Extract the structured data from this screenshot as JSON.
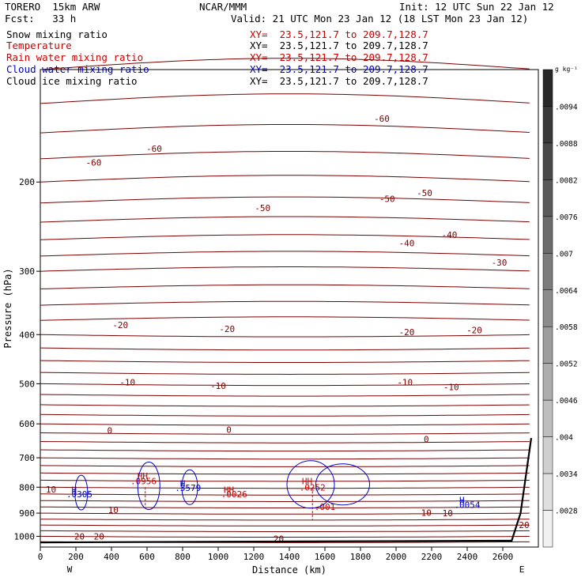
{
  "header": {
    "model": "TORERO  15km ARW",
    "center": "NCAR/MMM",
    "init": "Init: 12 UTC Sun 22 Jan 12",
    "fcst": "Fcst:   33 h",
    "valid": "Valid: 21 UTC Mon 23 Jan 12 (18 LST Mon 23 Jan 12)"
  },
  "legend": [
    {
      "label": "Snow mixing ratio",
      "xy": "",
      "color": "#000000"
    },
    {
      "label": "Temperature",
      "xy": "XY=  23.5,121.7 to 209.7,128.7",
      "color": "#cc0000"
    },
    {
      "label": "Rain water mixing ratio",
      "xy": "XY=  23.5,121.7 to 209.7,128.7",
      "color": "#cc0000"
    },
    {
      "label": "Cloud water mixing ratio",
      "xy": "XY=  23.5,121.7 to 209.7,128.7",
      "color": "#0000cc"
    },
    {
      "label": "Cloud ice mixing ratio",
      "xy": "XY=  23.5,121.7 to 209.7,128.7",
      "color": "#000000"
    }
  ],
  "xy_extra": "XY=  23.5,121.7 to 209.7,128.7",
  "chart_data": {
    "type": "contour-cross-section",
    "xlabel": "Distance (km)",
    "ylabel": "Pressure (hPa)",
    "xlim": [
      0,
      2800
    ],
    "ylim": [
      1050,
      120
    ],
    "x_ticks": [
      0,
      200,
      400,
      600,
      800,
      1000,
      1200,
      1400,
      1600,
      1800,
      2000,
      2200,
      2400,
      2600
    ],
    "x_tick_labels": [
      "0",
      "200",
      "400",
      "600",
      "800",
      "1000",
      "1200",
      "1400",
      "1600",
      "1800",
      "2000",
      "2200",
      "2400",
      "2600"
    ],
    "y_ticks": [
      200,
      300,
      400,
      500,
      600,
      700,
      800,
      900,
      1000
    ],
    "y_tick_labels": [
      "200",
      "300",
      "400",
      "500",
      "600",
      "700",
      "800",
      "900",
      "1000"
    ],
    "x_end_labels": {
      "left": "W",
      "right": "E"
    },
    "temperature_contours": [
      {
        "value": -60,
        "x": [
          0,
          400,
          1000,
          1600,
          2200,
          2800
        ],
        "y": [
          180,
          172,
          168,
          168,
          172,
          178
        ],
        "label_at": [
          [
            260,
            180
          ],
          [
            640,
            173
          ],
          [
            2040,
            136
          ]
        ]
      },
      {
        "value": -50,
        "x": [
          0,
          500,
          1000,
          1500,
          2000,
          2500,
          2800
        ],
        "y": [
          238,
          232,
          228,
          228,
          232,
          236,
          240
        ],
        "label_at": [
          [
            1240,
            199
          ],
          [
            1940,
            226
          ],
          [
            2150,
            216
          ]
        ]
      }
    ],
    "temperature_labels": [
      {
        "text": "-60",
        "x": 1920,
        "y": 150
      },
      {
        "text": "-60",
        "x": 300,
        "y": 183
      },
      {
        "text": "-60",
        "x": 640,
        "y": 172
      },
      {
        "text": "-50",
        "x": 1250,
        "y": 225
      },
      {
        "text": "-50",
        "x": 1950,
        "y": 216
      },
      {
        "text": "-50",
        "x": 2160,
        "y": 210
      },
      {
        "text": "-40",
        "x": 2060,
        "y": 264
      },
      {
        "text": "-40",
        "x": 2300,
        "y": 254
      },
      {
        "text": "-30",
        "x": 2580,
        "y": 288
      },
      {
        "text": "-20",
        "x": 450,
        "y": 383
      },
      {
        "text": "-20",
        "x": 1050,
        "y": 390
      },
      {
        "text": "-20",
        "x": 2060,
        "y": 395
      },
      {
        "text": "-20",
        "x": 2440,
        "y": 392
      },
      {
        "text": "-10",
        "x": 490,
        "y": 497
      },
      {
        "text": "-10",
        "x": 1000,
        "y": 505
      },
      {
        "text": "-10",
        "x": 2050,
        "y": 497
      },
      {
        "text": "-10",
        "x": 2310,
        "y": 507
      },
      {
        "text": "0",
        "x": 390,
        "y": 618
      },
      {
        "text": "0",
        "x": 1060,
        "y": 616
      },
      {
        "text": "0",
        "x": 2170,
        "y": 643
      },
      {
        "text": "10",
        "x": 60,
        "y": 808
      },
      {
        "text": "10",
        "x": 410,
        "y": 887
      },
      {
        "text": "10",
        "x": 2170,
        "y": 898
      },
      {
        "text": "10",
        "x": 2290,
        "y": 899
      },
      {
        "text": "20",
        "x": 2720,
        "y": 949
      },
      {
        "text": "20",
        "x": 220,
        "y": 1001
      },
      {
        "text": "20",
        "x": 330,
        "y": 1001
      },
      {
        "text": "20",
        "x": 1340,
        "y": 1012
      }
    ],
    "field_labels": [
      {
        "text": "H",
        "x": 190,
        "y": 810,
        "color": "#0000cc"
      },
      {
        "text": ".0305",
        "x": 220,
        "y": 826,
        "color": "#0000cc"
      },
      {
        "text": "HH",
        "x": 575,
        "y": 760,
        "color": "#cc0000"
      },
      {
        "text": ".0956",
        "x": 580,
        "y": 778,
        "color": "#cc0000"
      },
      {
        "text": "H",
        "x": 800,
        "y": 786,
        "color": "#0000cc"
      },
      {
        "text": ".3579",
        "x": 830,
        "y": 802,
        "color": "#0000cc"
      },
      {
        "text": "HH",
        "x": 1060,
        "y": 810,
        "color": "#cc0000"
      },
      {
        "text": ".0026",
        "x": 1090,
        "y": 826,
        "color": "#cc0000"
      },
      {
        "text": "HH",
        "x": 1500,
        "y": 778,
        "color": "#cc0000"
      },
      {
        "text": ".0252",
        "x": 1530,
        "y": 800,
        "color": "#cc0000"
      },
      {
        "text": ".001",
        "x": 1600,
        "y": 875,
        "color": "#cc0000"
      },
      {
        "text": "H",
        "x": 2370,
        "y": 848,
        "color": "#0000cc"
      },
      {
        "text": ".0054",
        "x": 2400,
        "y": 866,
        "color": "#0000cc"
      }
    ],
    "colorbar": {
      "unit": "g kg⁻¹",
      "labels": [
        ".0094",
        ".0088",
        ".0082",
        ".0076",
        ".007",
        ".0064",
        ".0058",
        ".0052",
        ".0046",
        ".004",
        ".0034",
        ".0028"
      ]
    }
  }
}
